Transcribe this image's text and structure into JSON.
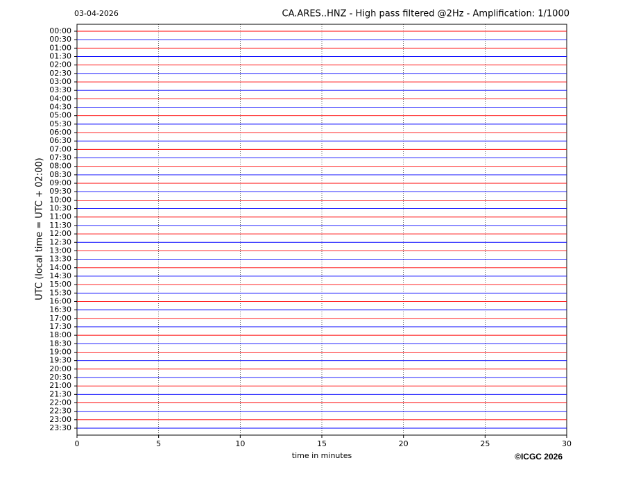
{
  "chart_data": {
    "type": "helicorder",
    "date": "03-04-2026",
    "title": "CA.ARES..HNZ - High pass filtered @2Hz - Amplification: 1/1000",
    "y_label": "UTC (local time = UTC + 02:00)",
    "x_label": "time in minutes",
    "copyright": "©ICGC 2026",
    "xlim": [
      0,
      30
    ],
    "xticks": [
      0,
      5,
      10,
      15,
      20,
      25,
      30
    ],
    "grid": true,
    "trace_colors": [
      "#ff0000",
      "#0000ff"
    ],
    "categories": [
      "00:00",
      "00:30",
      "01:00",
      "01:30",
      "02:00",
      "02:30",
      "03:00",
      "03:30",
      "04:00",
      "04:30",
      "05:00",
      "05:30",
      "06:00",
      "06:30",
      "07:00",
      "07:30",
      "08:00",
      "08:30",
      "09:00",
      "09:30",
      "10:00",
      "10:30",
      "11:00",
      "11:30",
      "12:00",
      "12:30",
      "13:00",
      "13:30",
      "14:00",
      "14:30",
      "15:00",
      "15:30",
      "16:00",
      "16:30",
      "17:00",
      "17:30",
      "18:00",
      "18:30",
      "19:00",
      "19:30",
      "20:00",
      "20:30",
      "21:00",
      "21:30",
      "22:00",
      "22:30",
      "23:00",
      "23:30"
    ]
  }
}
